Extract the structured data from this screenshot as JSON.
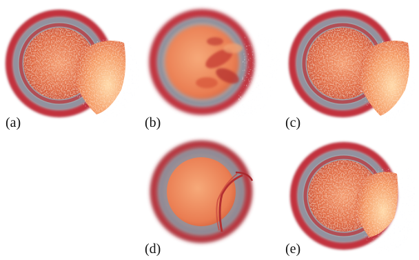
{
  "panels": [
    {
      "id": "a",
      "label": "(a)"
    },
    {
      "id": "b",
      "label": "(b)"
    },
    {
      "id": "c",
      "label": "(c)"
    },
    {
      "id": "d",
      "label": "(d)"
    },
    {
      "id": "e",
      "label": "(e)"
    }
  ],
  "colors": {
    "shell_red": "#c2333c",
    "shell_dark": "#8e1f2a",
    "shell_gray": "#9fa2aa",
    "core_orange": "#e86a45",
    "core_light": "#f6b07a",
    "highlight": "#ffe1b6",
    "wispy": "#dfe3ea"
  }
}
